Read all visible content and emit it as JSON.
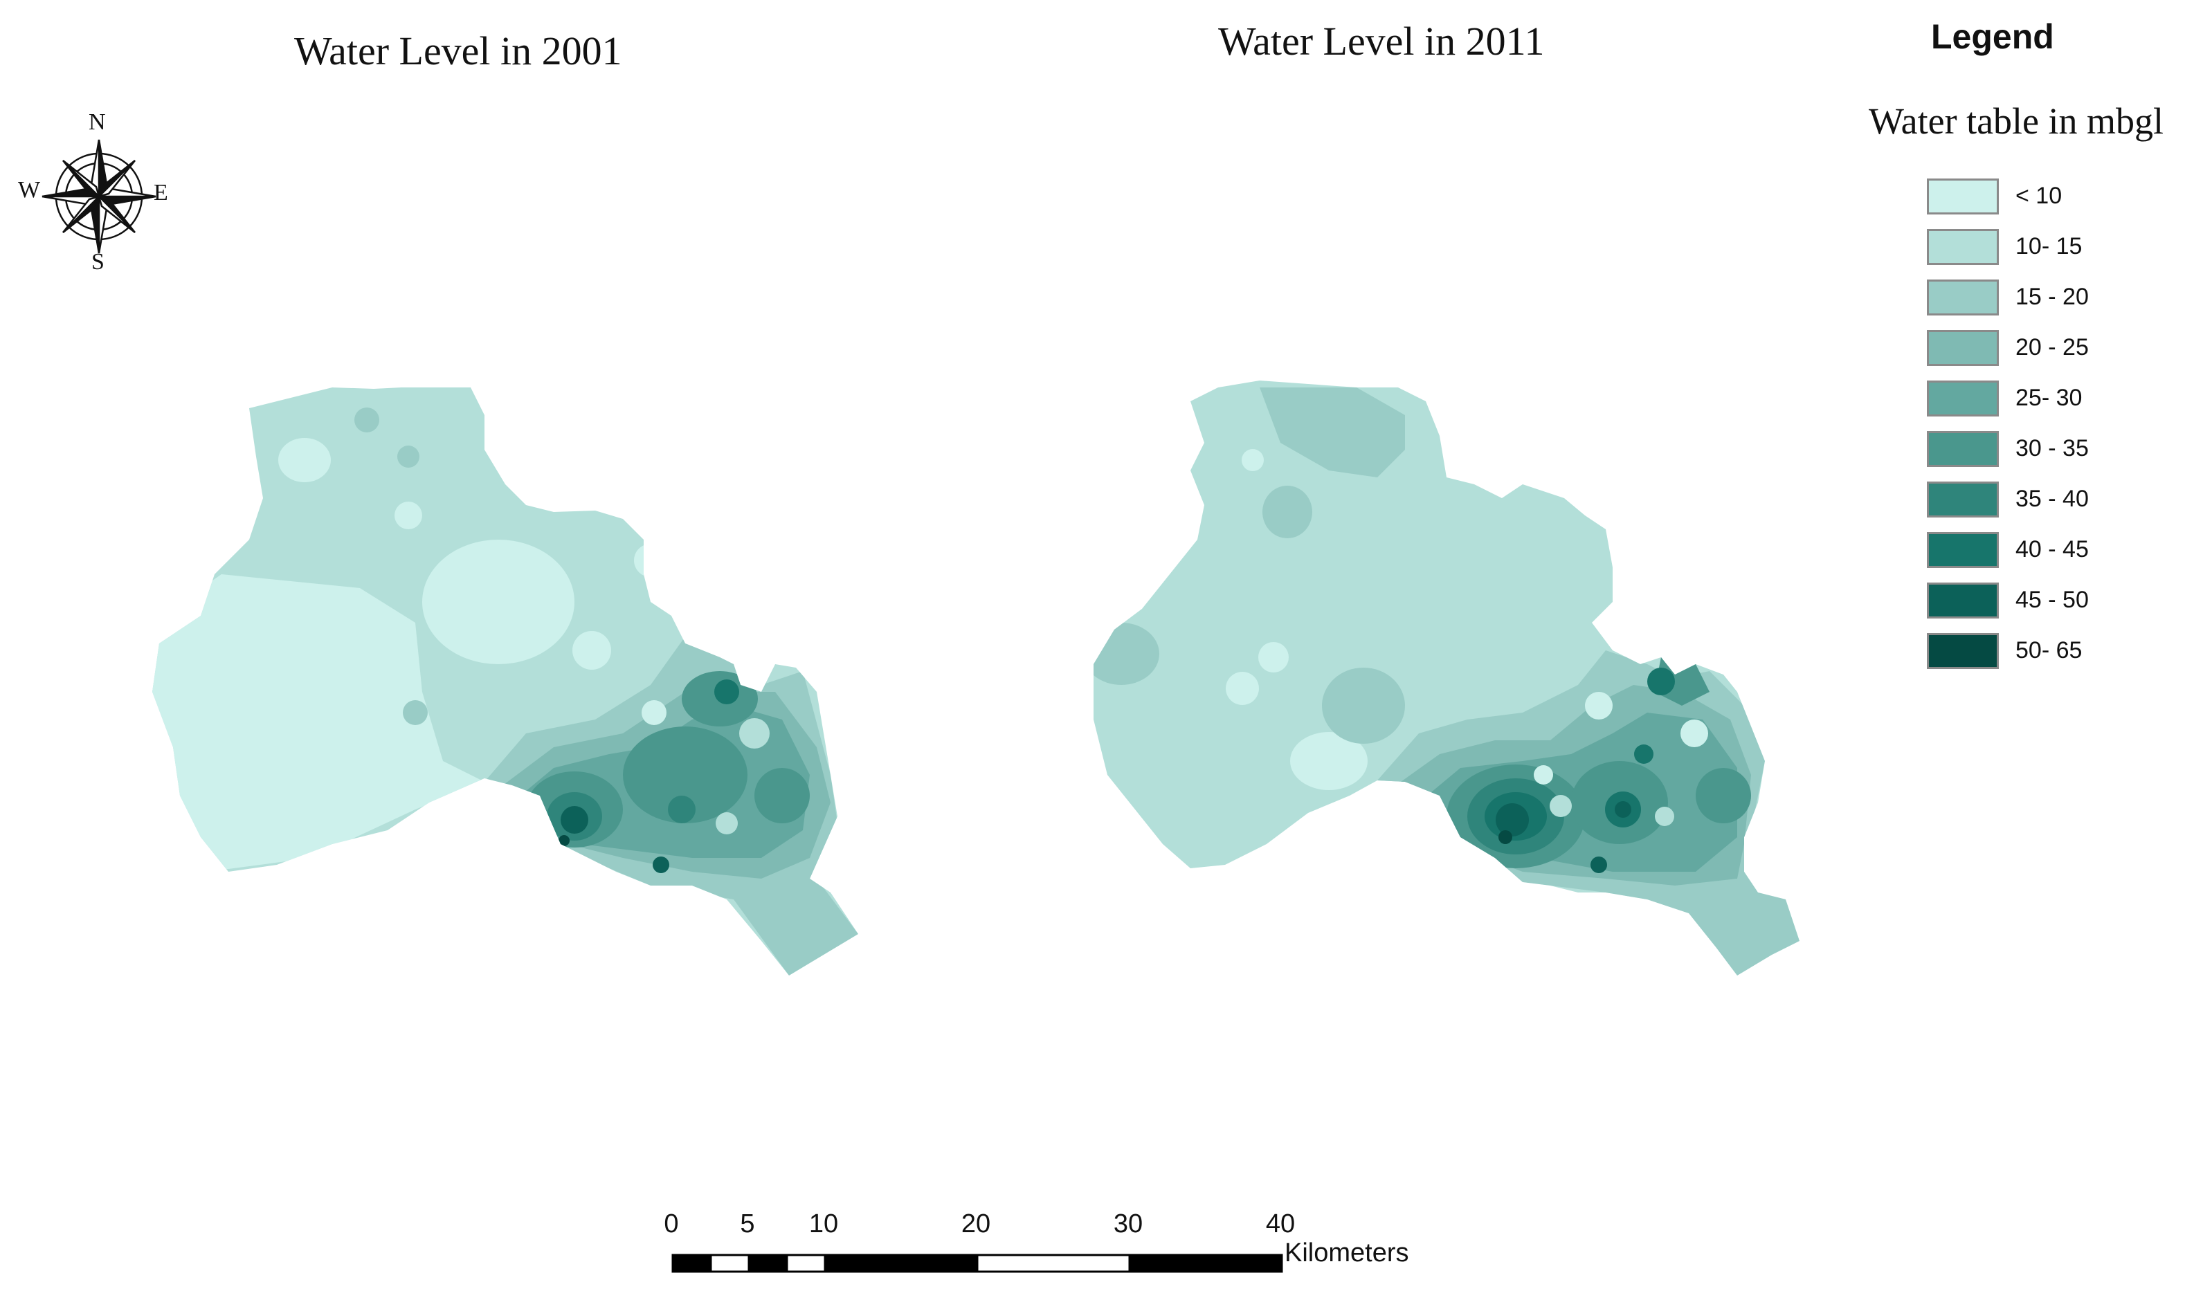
{
  "maps": [
    {
      "title": "Water Level in 2001"
    },
    {
      "title": "Water Level in 2011"
    }
  ],
  "legend": {
    "heading": "Legend",
    "subtitle": "Water table in mbgl",
    "items": [
      {
        "label": "< 10",
        "color": "#cdf1ec"
      },
      {
        "label": "10- 15",
        "color": "#b3dfd9"
      },
      {
        "label": "15 - 20",
        "color": "#99ccc6"
      },
      {
        "label": "20 - 25",
        "color": "#7fbab3"
      },
      {
        "label": "25- 30",
        "color": "#63a8a0"
      },
      {
        "label": "30 - 35",
        "color": "#4a978d"
      },
      {
        "label": "35 - 40",
        "color": "#2f857b"
      },
      {
        "label": "40 - 45",
        "color": "#17756b"
      },
      {
        "label": "45 - 50",
        "color": "#0c6159"
      },
      {
        "label": "50- 65",
        "color": "#054a43"
      }
    ]
  },
  "compass": {
    "n": "N",
    "s": "S",
    "e": "E",
    "w": "W"
  },
  "scalebar": {
    "ticks": [
      "0",
      "5",
      "10",
      "20",
      "30",
      "40"
    ],
    "tick_values": [
      0,
      5,
      10,
      20,
      30,
      40
    ],
    "unit": "Kilometers"
  }
}
